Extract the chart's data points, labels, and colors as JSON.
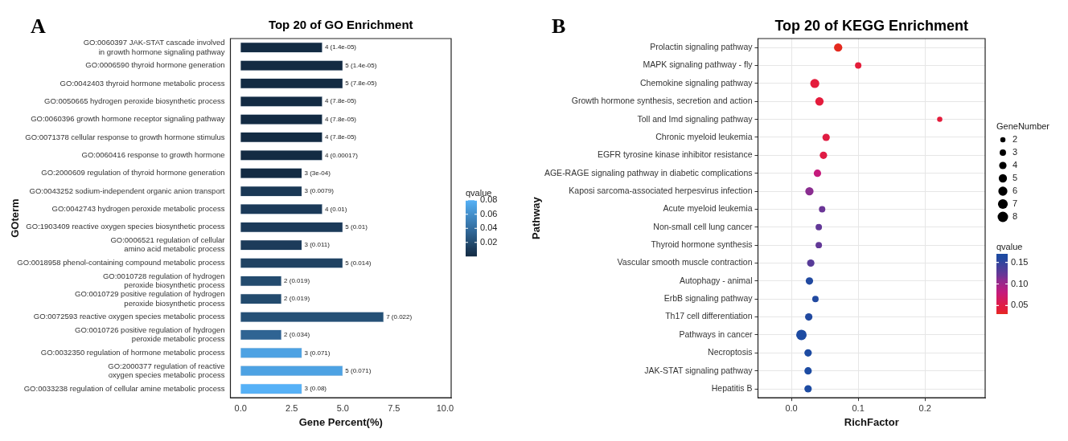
{
  "chart_data": [
    {
      "type": "bar",
      "orientation": "horizontal",
      "title": "Top 20 of GO Enrichment",
      "xlabel": "Gene Percent(%)",
      "ylabel": "GOterm",
      "annotations": [
        "A"
      ],
      "categories": [
        "GO:0060397 JAK-STAT cascade involved\nin growth hormone signaling pathway",
        "GO:0006590 thyroid hormone generation",
        "GO:0042403 thyroid hormone metabolic process",
        "GO:0050665 hydrogen peroxide biosynthetic process",
        "GO:0060396 growth hormone receptor signaling pathway",
        "GO:0071378 cellular response to growth hormone stimulus",
        "GO:0060416 response to growth hormone",
        "GO:2000609 regulation of thyroid hormone generation",
        "GO:0043252 sodium-independent organic anion transport",
        "GO:0042743 hydrogen peroxide metabolic process",
        "GO:1903409 reactive oxygen species biosynthetic process",
        "GO:0006521 regulation of cellular\namino acid metabolic process",
        "GO:0018958 phenol-containing compound metabolic process",
        "GO:0010728 regulation of hydrogen\nperoxide biosynthetic process",
        "GO:0010729 positive regulation of hydrogen\nperoxide biosynthetic process",
        "GO:0072593 reactive oxygen species metabolic process",
        "GO:0010726 positive regulation of hydrogen\nperoxide metabolic process",
        "GO:0032350 regulation of hormone metabolic process",
        "GO:2000377 regulation of reactive\noxygen species metabolic process",
        "GO:0033238 regulation of cellular amine metabolic process"
      ],
      "values": [
        4,
        5,
        5,
        4,
        4,
        4,
        4,
        3,
        3,
        4,
        5,
        3,
        5,
        2,
        2,
        7,
        2,
        3,
        5,
        3
      ],
      "value_labels": [
        "4 (1.4e-05)",
        "5 (1.4e-05)",
        "5 (7.8e-05)",
        "4 (7.8e-05)",
        "4 (7.8e-05)",
        "4 (7.8e-05)",
        "4 (0.00017)",
        "3 (3e-04)",
        "3 (0.0079)",
        "4 (0.01)",
        "5 (0.01)",
        "3 (0.011)",
        "5 (0.014)",
        "2 (0.019)",
        "2 (0.019)",
        "7 (0.022)",
        "2 (0.034)",
        "3 (0.071)",
        "5 (0.071)",
        "3 (0.08)"
      ],
      "cvalues": [
        1.4e-05,
        1.4e-05,
        7.8e-05,
        7.8e-05,
        7.8e-05,
        7.8e-05,
        0.00017,
        0.0003,
        0.0079,
        0.01,
        0.01,
        0.011,
        0.014,
        0.019,
        0.019,
        0.022,
        0.034,
        0.071,
        0.071,
        0.08
      ],
      "colors": [
        "#132b43",
        "#132b43",
        "#132b43",
        "#132b43",
        "#132b43",
        "#132b43",
        "#132b43",
        "#132b43",
        "#1a3855",
        "#1b3a59",
        "#1b3a59",
        "#1c3b5a",
        "#1f4262",
        "#234b6e",
        "#234b6e",
        "#255076",
        "#2f6493",
        "#4da2e3",
        "#4da2e3",
        "#56b1f7"
      ],
      "xlim": [
        -0.5,
        10.3
      ],
      "xticks": [
        {
          "value": 0,
          "label": "0.0"
        },
        {
          "value": 2.5,
          "label": "2.5"
        },
        {
          "value": 5,
          "label": "5.0"
        },
        {
          "value": 7.5,
          "label": "7.5"
        },
        {
          "value": 10,
          "label": "10.0"
        }
      ],
      "clabel": "qvalue",
      "clim": [
        0,
        0.08
      ],
      "cticks": [
        0.02,
        0.04,
        0.06,
        0.08
      ]
    },
    {
      "type": "bubble",
      "orientation": "horizontal",
      "title": "Top 20 of KEGG Enrichment",
      "xlabel": "RichFactor",
      "ylabel": "Pathway",
      "annotations": [
        "B"
      ],
      "categories": [
        "Prolactin signaling pathway",
        "MAPK signaling pathway - fly",
        "Chemokine signaling pathway",
        "Growth hormone synthesis, secretion and action",
        "Toll and Imd signaling pathway",
        "Chronic myeloid leukemia",
        "EGFR tyrosine kinase inhibitor resistance",
        "AGE-RAGE signaling pathway in diabetic complications",
        "Kaposi sarcoma-associated herpesvirus infection",
        "Acute myeloid leukemia",
        "Non-small cell lung cancer",
        "Thyroid hormone synthesis",
        "Vascular smooth muscle contraction",
        "Autophagy - animal",
        "ErbB signaling pathway",
        "Th17 cell differentiation",
        "Pathways in cancer",
        "Necroptosis",
        "JAK-STAT signaling pathway",
        "Hepatitis B"
      ],
      "values": [
        0.07,
        0.1,
        0.035,
        0.042,
        0.222,
        0.052,
        0.048,
        0.039,
        0.027,
        0.046,
        0.041,
        0.041,
        0.029,
        0.027,
        0.036,
        0.026,
        0.015,
        0.025,
        0.025,
        0.025
      ],
      "sizes": [
        5,
        3,
        6,
        5,
        2,
        4,
        4,
        4,
        5,
        3,
        3,
        3,
        4,
        4,
        3,
        4,
        8,
        4,
        4,
        4
      ],
      "size_legend": [
        2,
        3,
        4,
        5,
        6,
        7,
        8
      ],
      "legend_title": "GeneNumber",
      "cvalues": [
        0.03,
        0.04,
        0.04,
        0.04,
        0.045,
        0.045,
        0.05,
        0.08,
        0.11,
        0.12,
        0.125,
        0.125,
        0.13,
        0.16,
        0.16,
        0.16,
        0.17,
        0.17,
        0.17,
        0.17
      ],
      "colors": [
        "#e42a1f",
        "#e41d3a",
        "#e41c3c",
        "#e41c3c",
        "#e41c3c",
        "#e01c42",
        "#e01c45",
        "#c51a7c",
        "#8a2d90",
        "#6a3596",
        "#623897",
        "#623897",
        "#573b98",
        "#2149a0",
        "#2149a0",
        "#2149a0",
        "#1d4ba2",
        "#1d4ba2",
        "#1d4ba2",
        "#1d4ba2"
      ],
      "xlim": [
        -0.05,
        0.29
      ],
      "xticks": [
        {
          "value": 0,
          "label": "0.0"
        },
        {
          "value": 0.1,
          "label": "0.1"
        },
        {
          "value": 0.2,
          "label": "0.2"
        }
      ],
      "clabel": "qvalue",
      "clim": [
        0.03,
        0.17
      ],
      "cticks": [
        {
          "value": 0.05,
          "label": "0.05"
        },
        {
          "value": 0.1,
          "label": "0.10"
        },
        {
          "value": 0.15,
          "label": "0.15"
        }
      ],
      "grid": true
    }
  ]
}
